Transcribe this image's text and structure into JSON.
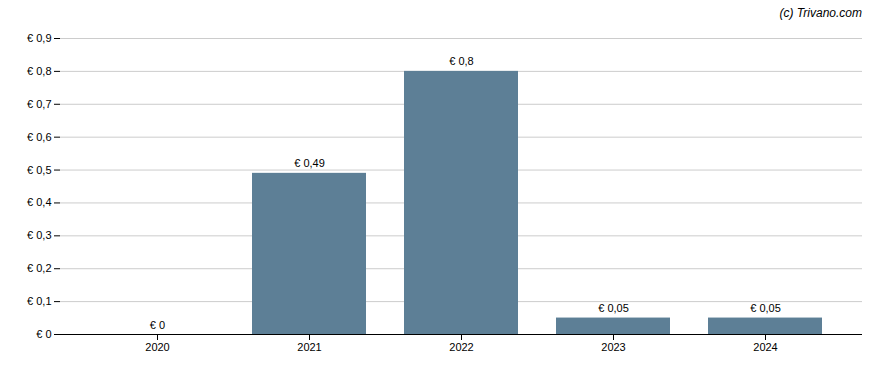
{
  "chart_data": {
    "type": "bar",
    "categories": [
      "2020",
      "2021",
      "2022",
      "2023",
      "2024"
    ],
    "values": [
      0.0,
      0.49,
      0.8,
      0.05,
      0.05
    ],
    "value_labels": [
      "€ 0",
      "€ 0,49",
      "€ 0,8",
      "€ 0,05",
      "€ 0,05"
    ],
    "data_labels": true,
    "color": "#5d7f96",
    "ylim": [
      0,
      0.9
    ],
    "yticks": [
      {
        "value": 0.0,
        "label": "€ 0"
      },
      {
        "value": 0.1,
        "label": "€ 0,1"
      },
      {
        "value": 0.2,
        "label": "€ 0,2"
      },
      {
        "value": 0.3,
        "label": "€ 0,3"
      },
      {
        "value": 0.4,
        "label": "€ 0,4"
      },
      {
        "value": 0.5,
        "label": "€ 0,5"
      },
      {
        "value": 0.6,
        "label": "€ 0,6"
      },
      {
        "value": 0.7,
        "label": "€ 0,7"
      },
      {
        "value": 0.8,
        "label": "€ 0,8"
      },
      {
        "value": 0.9,
        "label": "€ 0,9"
      }
    ],
    "grid": true,
    "annotations": [
      "(c) Trivano.com"
    ]
  }
}
